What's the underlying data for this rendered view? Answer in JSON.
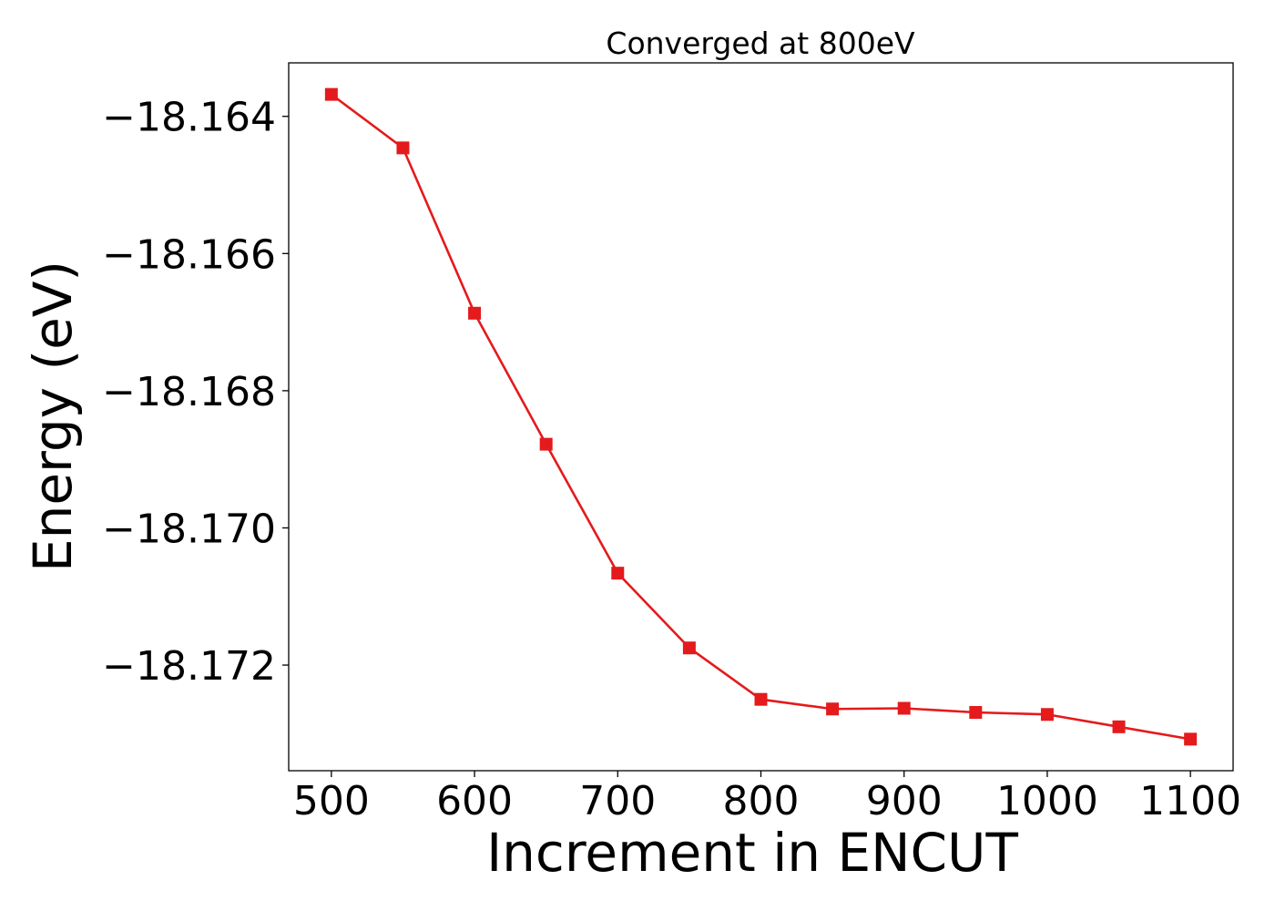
{
  "chart_data": {
    "type": "line",
    "title": "Converged at 800eV",
    "xlabel": "Increment in ENCUT",
    "ylabel": "Energy (eV)",
    "x": [
      500,
      550,
      600,
      650,
      700,
      750,
      800,
      850,
      900,
      950,
      1000,
      1050,
      1100
    ],
    "series": [
      {
        "values": [
          -18.16368,
          -18.16446,
          -18.16687,
          -18.16878,
          -18.17066,
          -18.17175,
          -18.1725,
          -18.17264,
          -18.17263,
          -18.17269,
          -18.17272,
          -18.1729,
          -18.17308
        ],
        "color": "#e41a1c",
        "marker": "square"
      }
    ],
    "xlim": [
      470.2,
      1129.8
    ],
    "ylim": [
      -18.17354,
      -18.16322
    ],
    "xticks": [
      500,
      600,
      700,
      800,
      900,
      1000,
      1100
    ],
    "xtick_labels": [
      "500",
      "600",
      "700",
      "800",
      "900",
      "1000",
      "1100"
    ],
    "yticks": [
      -18.164,
      -18.166,
      -18.168,
      -18.17,
      -18.172
    ],
    "ytick_labels": [
      "−18.164",
      "−18.166",
      "−18.168",
      "−18.170",
      "−18.172"
    ],
    "grid": false,
    "legend": "none"
  }
}
